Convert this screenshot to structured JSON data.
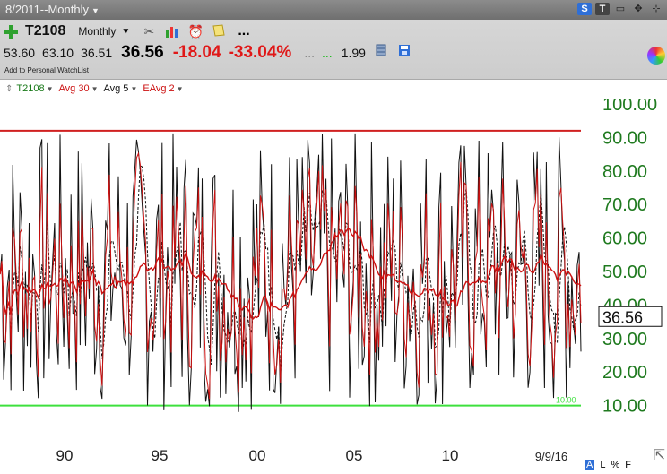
{
  "window": {
    "title": "8/2011--Monthly"
  },
  "toolbar": {
    "symbol": "T2108",
    "period": "Monthly",
    "more_label": "...",
    "buttons": [
      "S",
      "T"
    ]
  },
  "quote": {
    "open": "53.60",
    "high": "63.10",
    "low": "36.51",
    "last": "36.56",
    "change": "-18.04",
    "change_pct": "-33.04%",
    "dots1": "...",
    "dots2": "...",
    "vol": "1.99",
    "watchlist": "Add to Personal WatchList"
  },
  "legend": {
    "items": [
      {
        "label": "T2108",
        "color": "#1a7a1a"
      },
      {
        "label": "Avg 30",
        "color": "#cc1111"
      },
      {
        "label": "Avg 5",
        "color": "#111111"
      },
      {
        "label": "EAvg 2",
        "color": "#cc1111"
      }
    ]
  },
  "chart_data": {
    "type": "line",
    "x_tick_labels": [
      "90",
      "95",
      "00",
      "05",
      "10",
      "9/9/16"
    ],
    "y_tick_labels": [
      "100.00",
      "90.00",
      "80.00",
      "70.00",
      "60.00",
      "50.00",
      "40.00",
      "30.00",
      "20.00",
      "10.00"
    ],
    "ylim": [
      0,
      100
    ],
    "last_value_label": "36.56",
    "reference_lines": [
      {
        "value": 92,
        "color": "#d02020"
      },
      {
        "value": 10,
        "color": "#3de03d",
        "label": "10.00"
      }
    ],
    "series": [
      {
        "name": "Avg 5",
        "color": "#111111"
      },
      {
        "name": "EAvg 2",
        "color": "#cc1111"
      },
      {
        "name": "Avg 30",
        "color": "#cc1111"
      }
    ]
  },
  "status": {
    "l": "L",
    "pct": "%",
    "f": "F",
    "a": "A"
  },
  "colors": {
    "axis_text": "#1f7a1f",
    "red": "#cc1111",
    "green": "#3de03d"
  }
}
